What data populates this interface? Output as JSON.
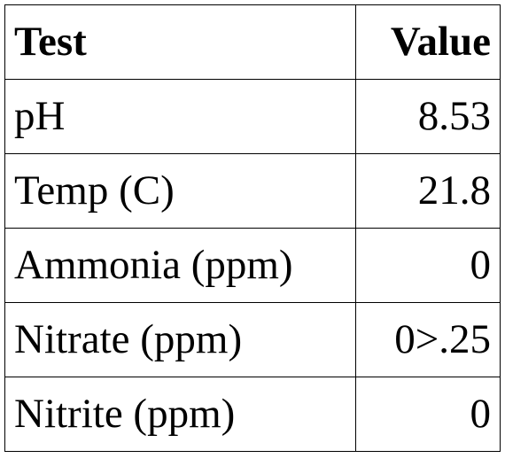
{
  "table": {
    "headers": [
      "Test",
      "Value"
    ],
    "rows": [
      [
        "pH",
        "8.53"
      ],
      [
        "Temp (C)",
        "21.8"
      ],
      [
        "Ammonia (ppm)",
        "0"
      ],
      [
        "Nitrate (ppm)",
        "0>.25"
      ],
      [
        "Nitrite (ppm)",
        "0"
      ]
    ]
  }
}
